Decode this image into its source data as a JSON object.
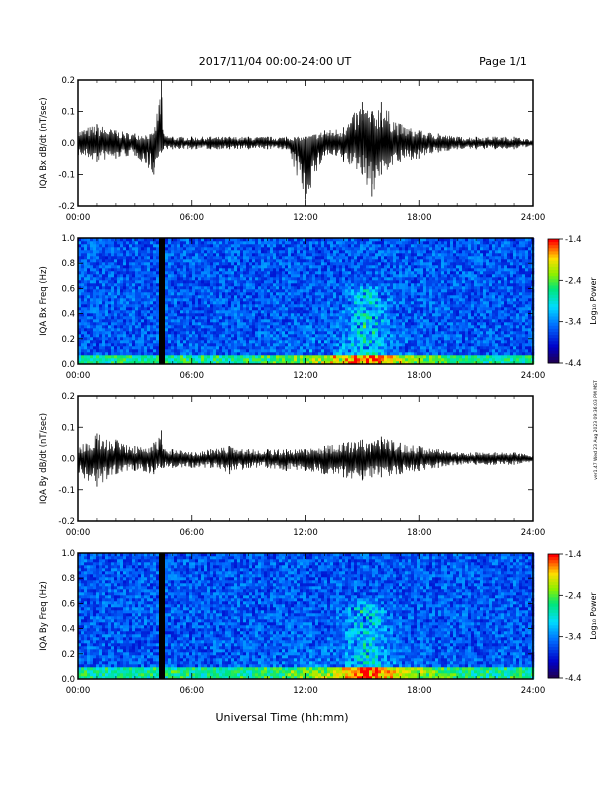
{
  "header": {
    "title": "2017/11/04  00:00-24:00 UT",
    "page": "Page 1/1"
  },
  "side_stamp": "ver1.47 Wed 23 Aug 2023 09:36:03 PM MST",
  "footer": {
    "xlabel": "Universal Time (hh:mm)"
  },
  "chart_data": [
    {
      "type": "line",
      "ylabel": "IQA Bx dB/dt (nT/sec)",
      "xlabel": "",
      "x_ticks": [
        "00:00",
        "06:00",
        "12:00",
        "18:00",
        "24:00"
      ],
      "xlim": [
        0,
        24
      ],
      "ylim": [
        -0.2,
        0.2
      ],
      "y_ticks": [
        "-0.2",
        "-0.1",
        "0.0",
        "0.1",
        "0.2"
      ],
      "series": [
        {
          "x": [
            0,
            1,
            2,
            3,
            4,
            4.4,
            4.5,
            5,
            6,
            7,
            8,
            9,
            10,
            11,
            12,
            13,
            14,
            15,
            15.5,
            16,
            17,
            18,
            19,
            20,
            21,
            22,
            23,
            24
          ],
          "max": [
            0.04,
            0.06,
            0.04,
            0.03,
            0.03,
            0.2,
            0.03,
            0.02,
            0.02,
            0.02,
            0.02,
            0.02,
            0.02,
            0.02,
            0.02,
            0.04,
            0.05,
            0.13,
            0.1,
            0.13,
            0.06,
            0.04,
            0.03,
            0.02,
            0.02,
            0.02,
            0.02,
            0.01
          ],
          "min": [
            -0.04,
            -0.06,
            -0.05,
            -0.04,
            -0.1,
            -0.03,
            -0.02,
            -0.02,
            -0.02,
            -0.02,
            -0.02,
            -0.02,
            -0.02,
            -0.02,
            -0.18,
            -0.04,
            -0.06,
            -0.1,
            -0.17,
            -0.1,
            -0.06,
            -0.05,
            -0.03,
            -0.02,
            -0.02,
            -0.02,
            -0.02,
            -0.01
          ]
        }
      ]
    },
    {
      "type": "heatmap",
      "ylabel": "IQA Bx Freq (Hz)",
      "xlabel": "",
      "x_ticks": [
        "00:00",
        "06:00",
        "12:00",
        "18:00",
        "24:00"
      ],
      "xlim": [
        0,
        24
      ],
      "ylim": [
        0,
        1.0
      ],
      "y_ticks": [
        "0.0",
        "0.2",
        "0.4",
        "0.6",
        "0.8",
        "1.0"
      ],
      "colorbar": {
        "label": "Log₁₀ Power",
        "ticks": [
          "-1.4",
          "-2.4",
          "-3.4",
          "-4.4"
        ],
        "range": [
          -4.4,
          -1.4
        ]
      },
      "data_gap": [
        4.2,
        4.5
      ],
      "enhancement": {
        "x_center": 15.2,
        "freq_top": 0.55,
        "low_freq_band": 0.08
      }
    },
    {
      "type": "line",
      "ylabel": "IQA By dB/dt (nT/sec)",
      "xlabel": "",
      "x_ticks": [
        "00:00",
        "06:00",
        "12:00",
        "18:00",
        "24:00"
      ],
      "xlim": [
        0,
        24
      ],
      "ylim": [
        -0.2,
        0.2
      ],
      "y_ticks": [
        "-0.2",
        "-0.1",
        "0.0",
        "0.1",
        "0.2"
      ],
      "series": [
        {
          "x": [
            0,
            1,
            2,
            3,
            4,
            4.4,
            4.5,
            5,
            6,
            7,
            8,
            9,
            10,
            11,
            12,
            13,
            14,
            15,
            15.5,
            16,
            17,
            18,
            19,
            20,
            21,
            22,
            23,
            24
          ],
          "max": [
            0.04,
            0.08,
            0.06,
            0.04,
            0.05,
            0.09,
            0.03,
            0.03,
            0.02,
            0.03,
            0.04,
            0.03,
            0.03,
            0.03,
            0.03,
            0.04,
            0.05,
            0.06,
            0.05,
            0.07,
            0.05,
            0.04,
            0.03,
            0.02,
            0.02,
            0.02,
            0.02,
            0.01
          ],
          "min": [
            -0.05,
            -0.09,
            -0.05,
            -0.04,
            -0.05,
            -0.03,
            -0.03,
            -0.03,
            -0.03,
            -0.03,
            -0.05,
            -0.03,
            -0.03,
            -0.04,
            -0.04,
            -0.05,
            -0.06,
            -0.07,
            -0.06,
            -0.06,
            -0.05,
            -0.04,
            -0.03,
            -0.02,
            -0.02,
            -0.02,
            -0.02,
            -0.01
          ]
        }
      ]
    },
    {
      "type": "heatmap",
      "ylabel": "IQA By Freq (Hz)",
      "xlabel": "",
      "x_ticks": [
        "00:00",
        "06:00",
        "12:00",
        "18:00",
        "24:00"
      ],
      "xlim": [
        0,
        24
      ],
      "ylim": [
        0,
        1.0
      ],
      "y_ticks": [
        "0.0",
        "0.2",
        "0.4",
        "0.6",
        "0.8",
        "1.0"
      ],
      "colorbar": {
        "label": "Log₁₀ Power",
        "ticks": [
          "-1.4",
          "-2.4",
          "-3.4",
          "-4.4"
        ],
        "range": [
          -4.4,
          -1.4
        ]
      },
      "data_gap": [
        4.2,
        4.5
      ],
      "enhancement": {
        "x_center": 15.2,
        "freq_top": 0.55,
        "low_freq_band": 0.1
      }
    }
  ]
}
